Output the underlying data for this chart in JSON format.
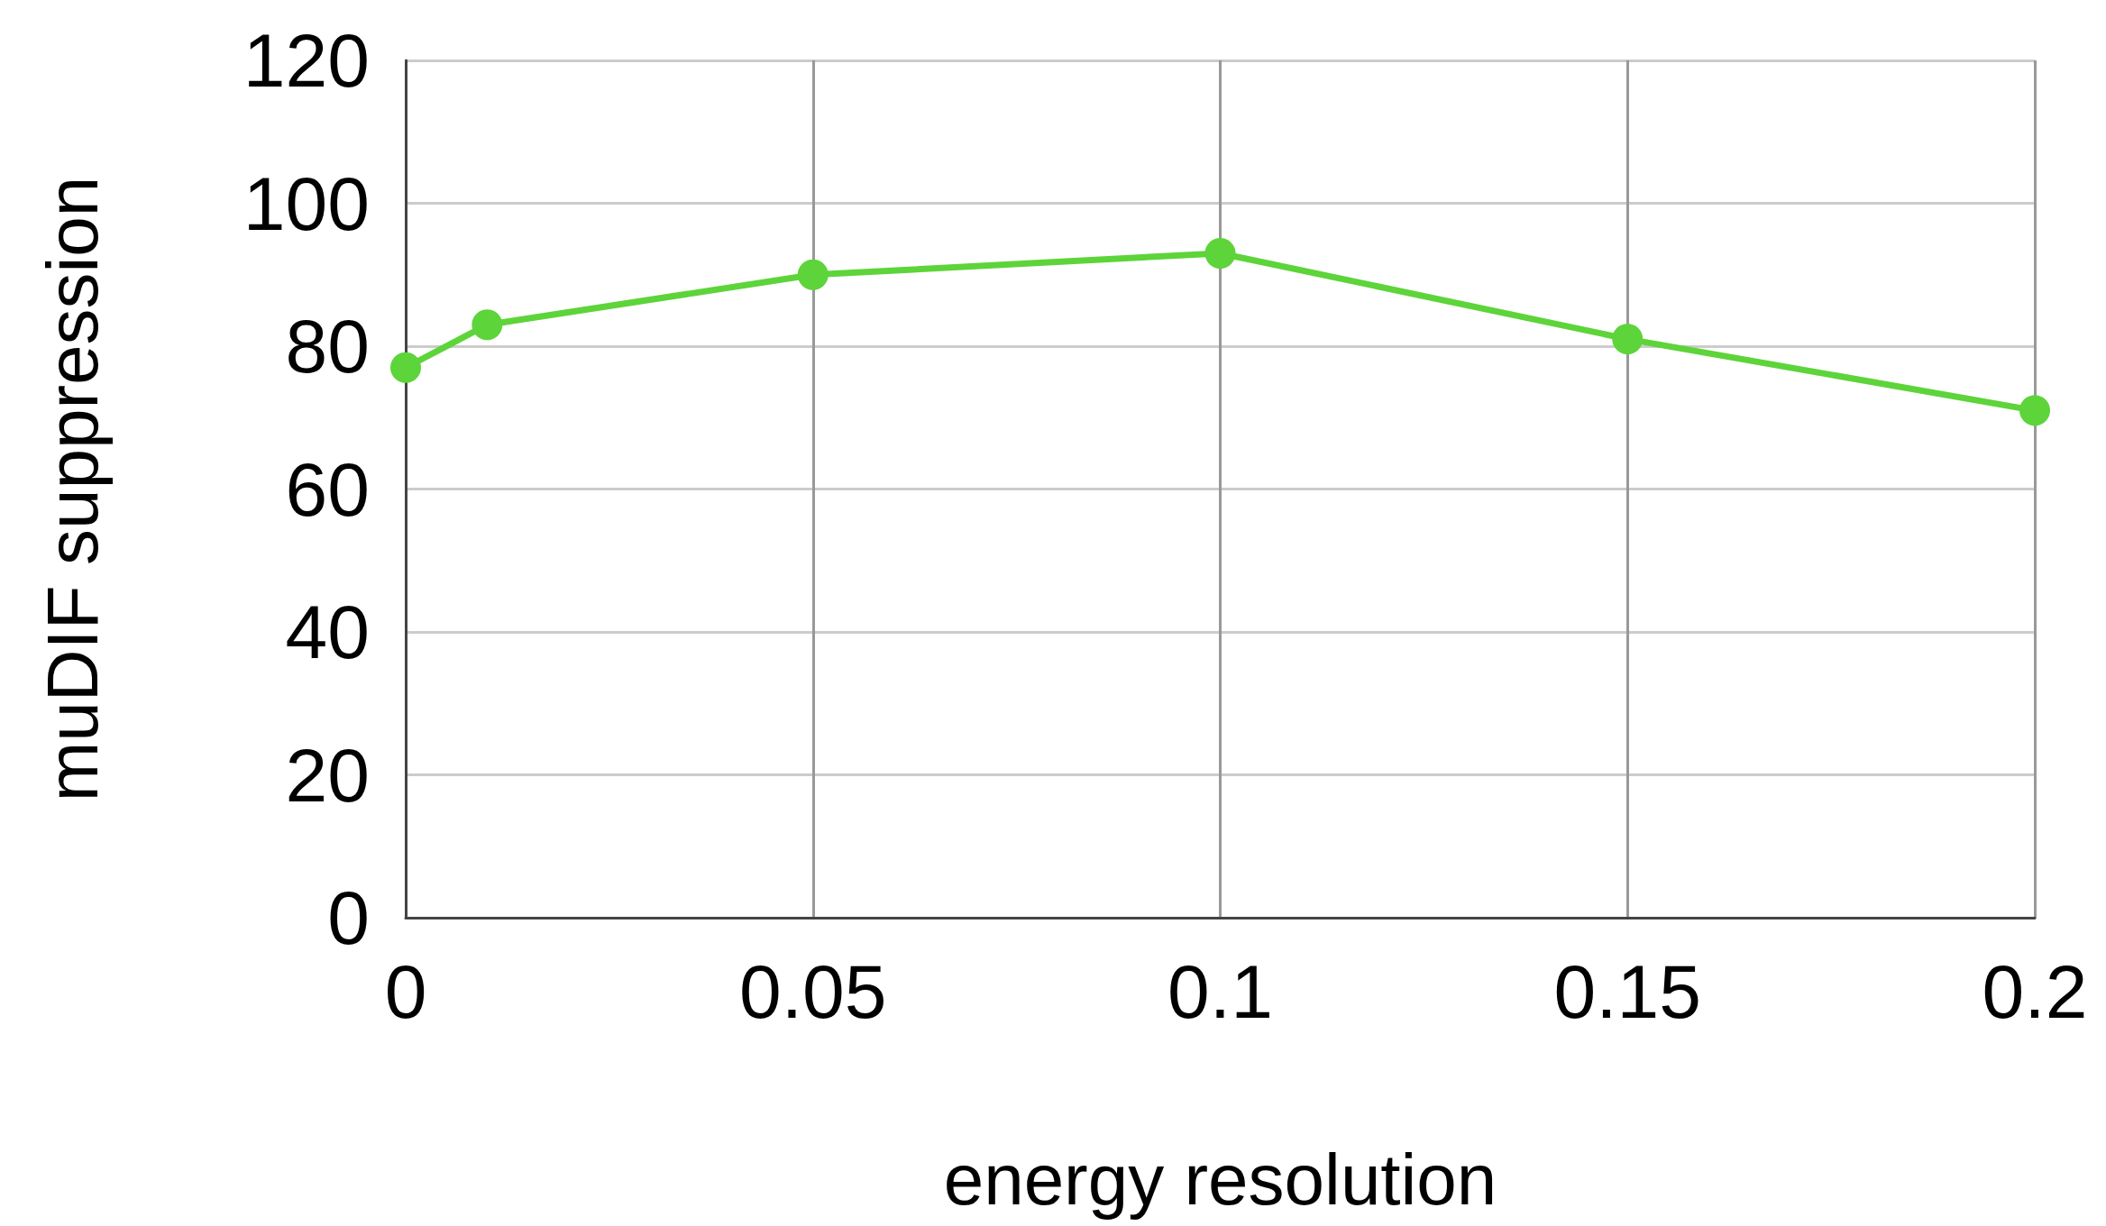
{
  "chart_data": {
    "type": "line",
    "xlabel": "energy resolution",
    "ylabel": "muDIF suppression",
    "x": [
      0,
      0.01,
      0.05,
      0.1,
      0.15,
      0.2
    ],
    "series": [
      {
        "color": "#5dd43a",
        "values": [
          77,
          83,
          90,
          93,
          81,
          71
        ]
      }
    ],
    "xlim": [
      0,
      0.2
    ],
    "xticks": [
      0,
      0.05,
      0.1,
      0.15,
      0.2
    ],
    "ylim": [
      0,
      120
    ],
    "yticks": [
      0,
      20,
      40,
      60,
      80,
      100,
      120
    ],
    "grid": true,
    "marker": "circle",
    "line_style": "solid"
  }
}
